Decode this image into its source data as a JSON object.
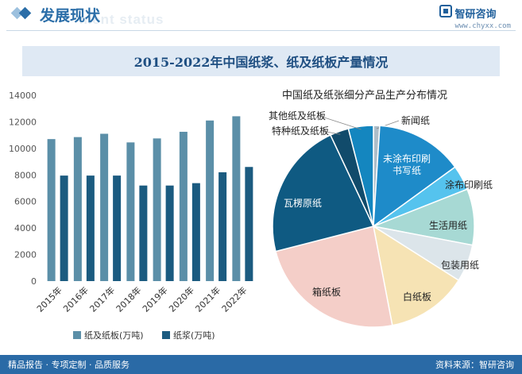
{
  "header": {
    "title": "发展现状",
    "watermark": "ment status"
  },
  "brand": {
    "name": "智研咨询",
    "url": "www.chyxx.com"
  },
  "banner": {
    "title": "2015-2022年中国纸浆、纸及纸板产量情况"
  },
  "footer": {
    "left": "精品报告 · 专项定制 · 品质服务",
    "right": "资料来源：智研咨询"
  },
  "colors": {
    "header_blue": "#2b6ea8",
    "paper_board": "#5b8fa8",
    "pulp": "#1b5b80",
    "footer_bg": "#2a6aa6"
  },
  "chart_data": [
    {
      "type": "bar",
      "categories": [
        "2015年",
        "2016年",
        "2017年",
        "2018年",
        "2019年",
        "2020年",
        "2021年",
        "2022年"
      ],
      "series": [
        {
          "name": "纸及纸板(万吨)",
          "values": [
            10700,
            10850,
            11100,
            10450,
            10750,
            11250,
            12100,
            12420
          ]
        },
        {
          "name": "纸浆(万吨)",
          "values": [
            7950,
            7950,
            7950,
            7200,
            7200,
            7380,
            8200,
            8600
          ]
        }
      ],
      "yticks": [
        0,
        2000,
        4000,
        6000,
        8000,
        10000,
        12000,
        14000
      ],
      "ylim": [
        0,
        14000
      ],
      "legend_position": "bottom"
    },
    {
      "type": "pie",
      "title": "中国纸及纸张细分产品生产分布情况",
      "slices": [
        {
          "label": "新闻纸",
          "value": 1,
          "color": "#aebec9"
        },
        {
          "label": "未涂布印刷书写纸",
          "value": 14,
          "color": "#1e8bc9"
        },
        {
          "label": "涂布印刷纸",
          "value": 4,
          "color": "#55c3ee"
        },
        {
          "label": "生活用纸",
          "value": 9,
          "color": "#a7d9d4"
        },
        {
          "label": "包装用纸",
          "value": 6,
          "color": "#dce5ea"
        },
        {
          "label": "白纸板",
          "value": 13,
          "color": "#f6e3b4"
        },
        {
          "label": "箱纸板",
          "value": 24,
          "color": "#f4cec8"
        },
        {
          "label": "瓦楞原纸",
          "value": 22,
          "color": "#0f5a82"
        },
        {
          "label": "特种纸及纸板",
          "value": 3,
          "color": "#114b6b"
        },
        {
          "label": "其他纸及纸板",
          "value": 4,
          "color": "#1486bf"
        }
      ]
    }
  ]
}
